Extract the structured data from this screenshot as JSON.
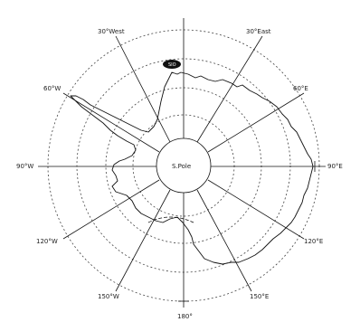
{
  "map": {
    "title": "",
    "center_label": "S.Pole",
    "meridian_labels": {
      "m30w": "30°West",
      "m30e": "30°East",
      "m60w": "60°W",
      "m60e": "60°E",
      "m90w": "90°W",
      "m90e": "90°E",
      "m120w": "120°W",
      "m120e": "120°E",
      "m150w": "150°W",
      "m150e": "150°E",
      "m180": "180°"
    },
    "inset_label": "SIO"
  }
}
